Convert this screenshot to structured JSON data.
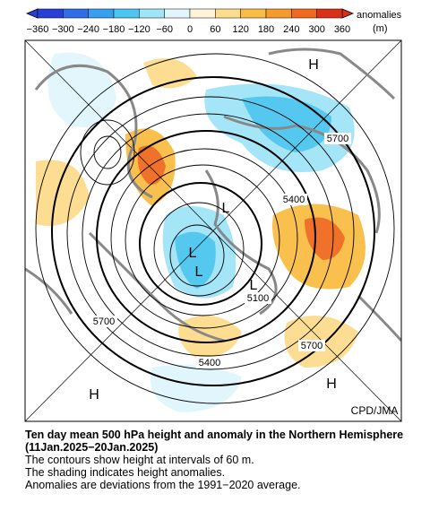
{
  "colorbar": {
    "ticks": [
      "−360",
      "−300",
      "−240",
      "−180",
      "−120",
      "−60",
      "0",
      "60",
      "120",
      "180",
      "240",
      "300",
      "360"
    ],
    "title": "anomalies",
    "unit": "(m)"
  },
  "map": {
    "highs": [
      "H",
      "H",
      "H"
    ],
    "lows": [
      "L",
      "L",
      "L",
      "L"
    ],
    "contour_labels": [
      "5700",
      "5700",
      "5700",
      "5400",
      "5400",
      "5100"
    ],
    "credit": "CPD/JMA"
  },
  "caption": {
    "title": "Ten day mean 500 hPa height and anomaly in the Northern Hemisphere (11Jan.2025−20Jan.2025)",
    "lines": [
      "The contours show height at intervals of 60 m.",
      "The shading indicates height anomalies.",
      "Anomalies are deviations from the 1991−2020 average."
    ]
  }
}
